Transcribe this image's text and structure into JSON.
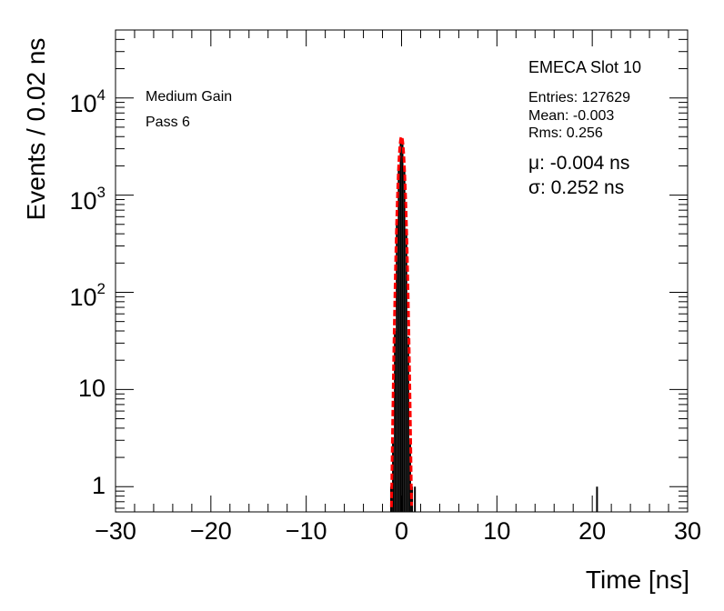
{
  "chart_data": {
    "type": "histogram",
    "title": "EMECA Slot 10",
    "xlabel": "Time [ns]",
    "ylabel": "Events / 0.02 ns",
    "xlim": [
      -30,
      30
    ],
    "ylim": [
      0.55,
      50000
    ],
    "yscale": "log",
    "x_ticks": [
      "−30",
      "−20",
      "−10",
      "0",
      "10",
      "20",
      "30"
    ],
    "y_ticks": [
      {
        "base": "10",
        "exp": "4",
        "value": 10000
      },
      {
        "base": "10",
        "exp": "3",
        "value": 1000
      },
      {
        "base": "10",
        "exp": "2",
        "value": 100
      },
      {
        "base": "10",
        "exp": "",
        "value": 10
      },
      {
        "base": "1",
        "exp": "",
        "value": 1
      }
    ],
    "labels": {
      "gain": "Medium Gain",
      "pass": "Pass 6"
    },
    "stats": {
      "entries": "Entries: 127629",
      "mean": "Mean: -0.003",
      "rms": "Rms: 0.256"
    },
    "fit": {
      "mu_text": "μ: -0.004 ns",
      "sigma_text": "σ: 0.252 ns",
      "mu": -0.004,
      "sigma": 0.252,
      "peak": 4000,
      "color": "#ff0000"
    },
    "histogram": {
      "color": "#000000",
      "bins": [
        {
          "x": -1.1,
          "y": 1
        },
        {
          "x": -0.9,
          "y": 3
        },
        {
          "x": -0.7,
          "y": 40
        },
        {
          "x": -0.5,
          "y": 500
        },
        {
          "x": -0.3,
          "y": 1900
        },
        {
          "x": -0.1,
          "y": 3800
        },
        {
          "x": 0.1,
          "y": 3700
        },
        {
          "x": 0.3,
          "y": 1800
        },
        {
          "x": 0.5,
          "y": 450
        },
        {
          "x": 0.7,
          "y": 35
        },
        {
          "x": 0.9,
          "y": 3
        },
        {
          "x": 1.1,
          "y": 1
        },
        {
          "x": 1.4,
          "y": 1
        },
        {
          "x": 20.5,
          "y": 1
        }
      ]
    }
  }
}
